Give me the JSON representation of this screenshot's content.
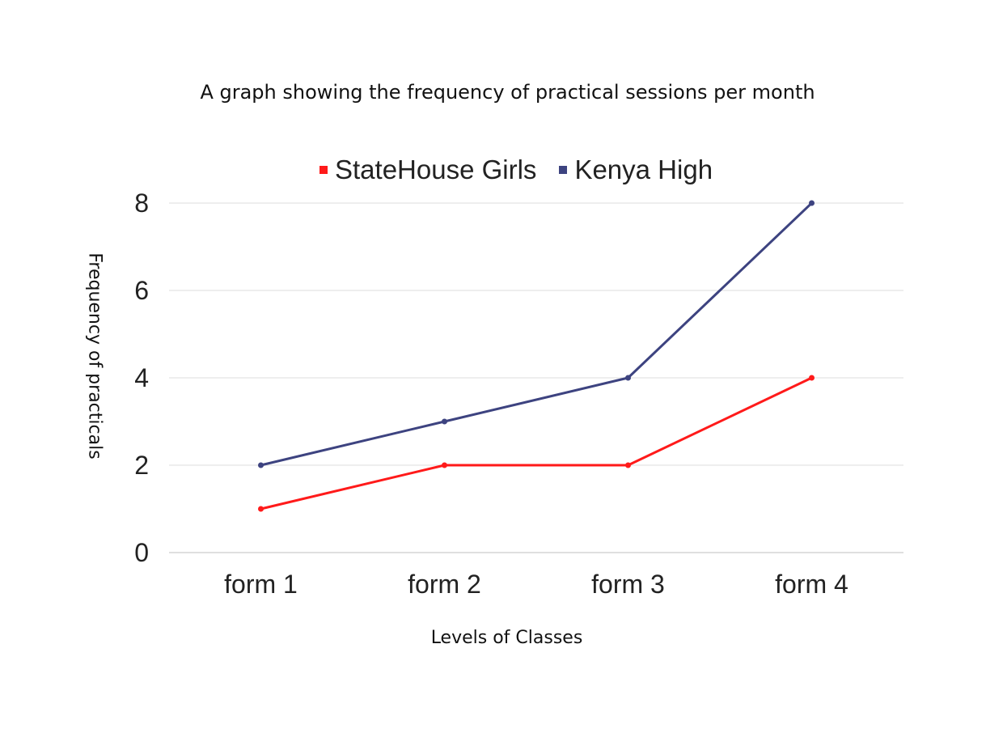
{
  "chart_data": {
    "type": "line",
    "title": "A graph showing the frequency of practical sessions per month",
    "xlabel": "Levels of Classes",
    "ylabel": "Frequency of practicals",
    "categories": [
      "form 1",
      "form 2",
      "form 3",
      "form 4"
    ],
    "ylim": [
      0,
      8
    ],
    "yticks": [
      0,
      2,
      4,
      6,
      8
    ],
    "grid": "horizontal",
    "legend_position": "top",
    "series": [
      {
        "name": "StateHouse Girls",
        "color": "#ff1a1a",
        "values": [
          1,
          2,
          2,
          4
        ]
      },
      {
        "name": "Kenya High",
        "color": "#3d4380",
        "values": [
          2,
          3,
          4,
          8
        ]
      }
    ]
  }
}
